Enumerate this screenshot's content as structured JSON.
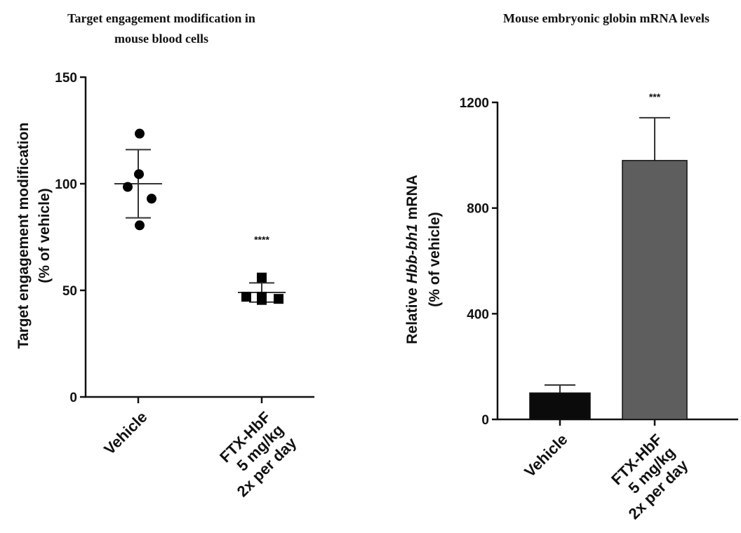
{
  "chart_data": [
    {
      "type": "scatter",
      "title": "Target engagement modification in mouse blood cells",
      "title_lines": [
        "Target engagement modification in",
        "mouse blood cells"
      ],
      "ylabel": "Target engagement modification",
      "ylabel_line2": "(% of vehicle)",
      "ylim": [
        0,
        150
      ],
      "yticks": [
        0,
        50,
        100,
        150
      ],
      "grid": false,
      "categories": [
        "Vehicle",
        "FTX-HbF 5 mg/kg 2x per day"
      ],
      "category_lines": [
        [
          "Vehicle"
        ],
        [
          "FTX-HbF",
          "5 mg/kg",
          "2x per day"
        ]
      ],
      "series": [
        {
          "category": "Vehicle",
          "marker": "circle",
          "values": [
            123.5,
            104.5,
            98.5,
            93,
            80.5
          ],
          "mean": 100,
          "sd": 16,
          "significance": ""
        },
        {
          "category": "FTX-HbF 5 mg/kg 2x per day",
          "marker": "square",
          "values": [
            56,
            47,
            47,
            46,
            45.5
          ],
          "mean": 49,
          "sd": 4.5,
          "significance": "****"
        }
      ]
    },
    {
      "type": "bar",
      "title": "Mouse embryonic globin mRNA levels",
      "ylabel_prefix": "Relative ",
      "ylabel_gene": "Hbb-bh1",
      "ylabel_suffix": " mRNA",
      "ylabel_line2": "(% of vehicle)",
      "ylim": [
        0,
        1200
      ],
      "yticks": [
        0,
        400,
        800,
        1200
      ],
      "grid": false,
      "categories": [
        "Vehicle",
        "FTX-HbF 5 mg/kg 2x per day"
      ],
      "category_lines": [
        [
          "Vehicle"
        ],
        [
          "FTX-HbF",
          "5 mg/kg",
          "2x per day"
        ]
      ],
      "values": [
        100,
        980
      ],
      "errors": [
        30,
        162
      ],
      "significance": [
        "",
        "***"
      ],
      "colors": [
        "#0b0b0b",
        "#5e5e5e"
      ]
    }
  ]
}
